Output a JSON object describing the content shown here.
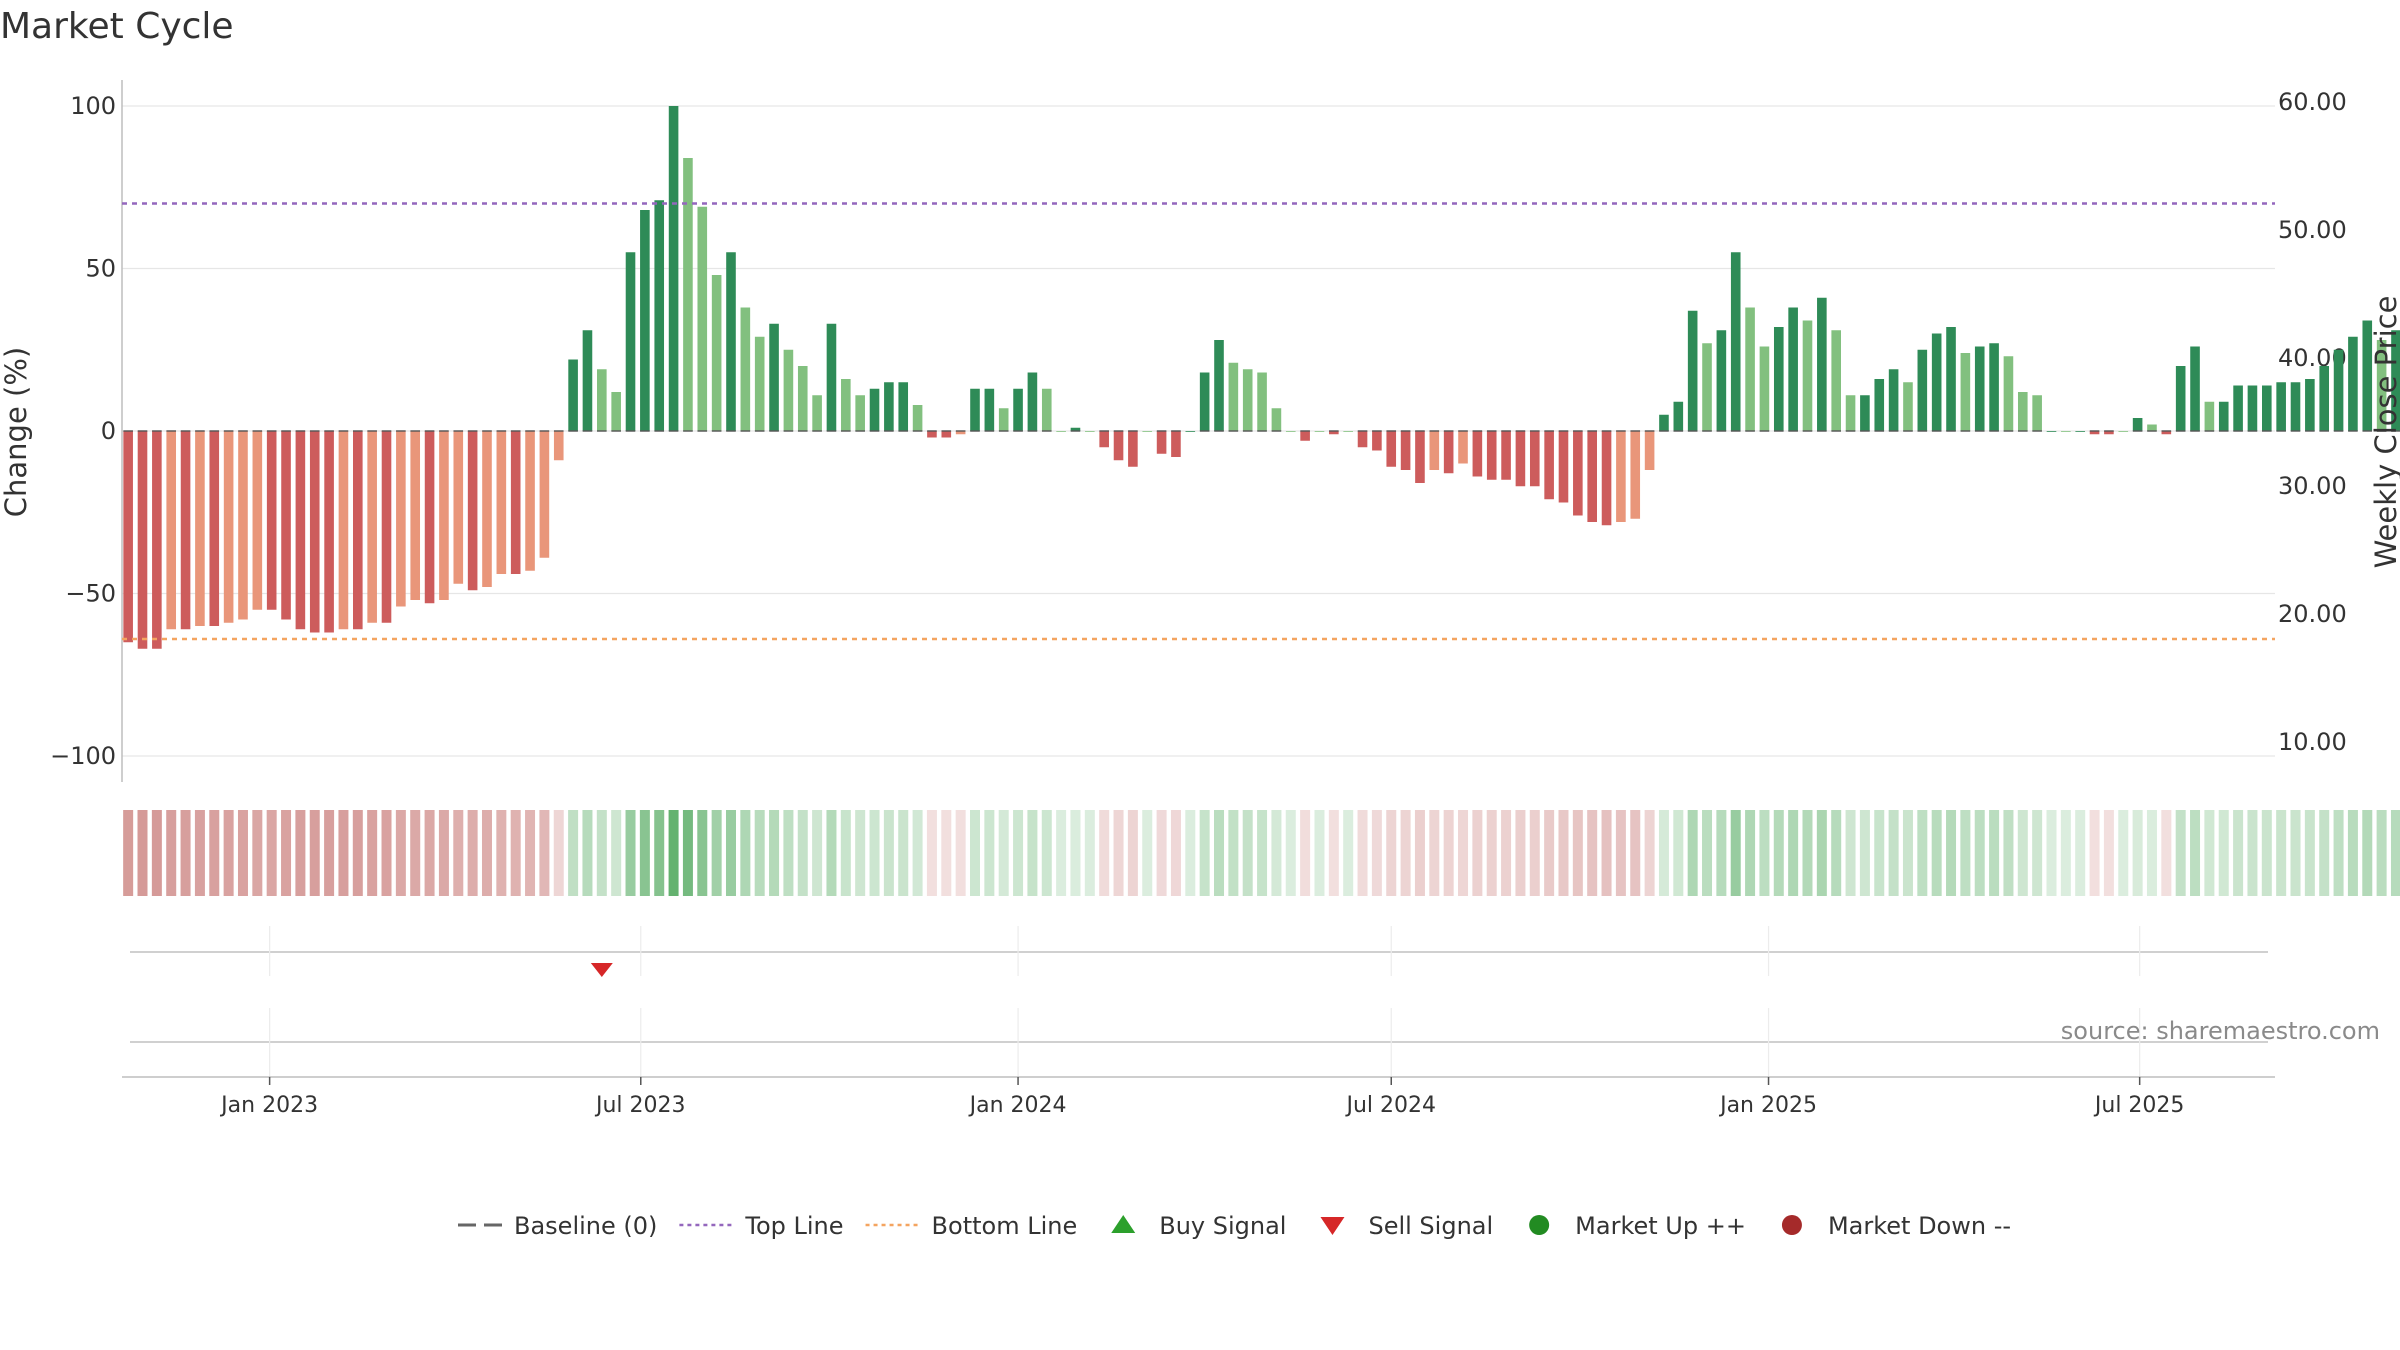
{
  "chart_data": {
    "type": "bar",
    "title": "Market Cycle",
    "ylabel": "Change (%)",
    "y2label": "Weekly Close Price",
    "ylim": [
      -107,
      107
    ],
    "y2lim": [
      7.5,
      62
    ],
    "yticks": [
      "100",
      "50",
      "0",
      "−50",
      "−100"
    ],
    "yticks_values": [
      100,
      50,
      0,
      -50,
      -100
    ],
    "y2ticks": [
      "60.00",
      "50.00",
      "40.00",
      "30.00",
      "20.00",
      "10.00"
    ],
    "y2ticks_values": [
      60,
      50,
      40,
      30,
      20,
      10
    ],
    "top_line": 70,
    "bottom_line": -64,
    "start_date": "2022-10-24",
    "x_range": [
      "2022-10-21",
      "2025-09-05"
    ],
    "xticks": [
      {
        "date": "2023-01-01",
        "label": "Jan 2023"
      },
      {
        "date": "2023-07-01",
        "label": "Jul 2023"
      },
      {
        "date": "2024-01-01",
        "label": "Jan 2024"
      },
      {
        "date": "2024-07-01",
        "label": "Jul 2024"
      },
      {
        "date": "2025-01-01",
        "label": "Jan 2025"
      },
      {
        "date": "2025-07-01",
        "label": "Jul 2025"
      }
    ],
    "values": [
      -65,
      -67,
      -67,
      -61,
      -61,
      -60,
      -60,
      -59,
      -58,
      -55,
      -55,
      -58,
      -61,
      -62,
      -62,
      -61,
      -61,
      -59,
      -59,
      -54,
      -52,
      -53,
      -52,
      -47,
      -49,
      -48,
      -44,
      -44,
      -43,
      -39,
      -9,
      22,
      31,
      19,
      12,
      55,
      68,
      71,
      100,
      84,
      69,
      48,
      55,
      38,
      29,
      33,
      25,
      20,
      11,
      33,
      16,
      11,
      13,
      15,
      15,
      8,
      -2,
      -2,
      -1,
      13,
      13,
      7,
      13,
      18,
      13,
      0,
      1,
      0,
      -5,
      -9,
      -11,
      0,
      -7,
      -8,
      0,
      18,
      28,
      21,
      19,
      18,
      7,
      0,
      -3,
      0,
      -1,
      0,
      -5,
      -6,
      -11,
      -12,
      -16,
      -12,
      -13,
      -10,
      -14,
      -15,
      -15,
      -17,
      -17,
      -21,
      -22,
      -26,
      -28,
      -29,
      -28,
      -27,
      -12,
      5,
      9,
      37,
      27,
      31,
      55,
      38,
      26,
      32,
      38,
      34,
      41,
      31,
      11,
      11,
      16,
      19,
      15,
      25,
      30,
      32,
      24,
      26,
      27,
      23,
      12,
      11,
      0,
      0,
      0,
      -1,
      -1,
      0,
      4,
      2,
      -1,
      20,
      26,
      9,
      9,
      14,
      14,
      14,
      15,
      15,
      16,
      20,
      25,
      29,
      34,
      28,
      31,
      24,
      22
    ],
    "signals": [
      {
        "type": "sell",
        "date": "2023-06-12"
      }
    ],
    "source": "source: sharemaestro.com",
    "legend": [
      {
        "label": "Baseline (0)",
        "icon": "baseline-dash-icon"
      },
      {
        "label": "Top Line",
        "icon": "top-line-dots-icon",
        "color": "#9467bd"
      },
      {
        "label": "Bottom Line",
        "icon": "bottom-line-dots-icon",
        "color": "#f4a460"
      },
      {
        "label": "Buy Signal",
        "icon": "triangle-up-icon",
        "color": "#2ca02c"
      },
      {
        "label": "Sell Signal",
        "icon": "triangle-down-icon",
        "color": "#d62728"
      },
      {
        "label": "Market Up ++",
        "icon": "circle-icon",
        "color": "#228b22"
      },
      {
        "label": "Market Down --",
        "icon": "circle-icon",
        "color": "#a52a2a"
      }
    ],
    "colors": {
      "strong_up": "#2e8b57",
      "weak_up": "#82c07f",
      "strong_down": "#cd5c5c",
      "weak_down": "#e9967a",
      "top_line": "#9467bd",
      "bottom_line": "#f4a460",
      "baseline": "#555555",
      "heat_up": "#3a9d48",
      "heat_down": "#b85450"
    }
  }
}
